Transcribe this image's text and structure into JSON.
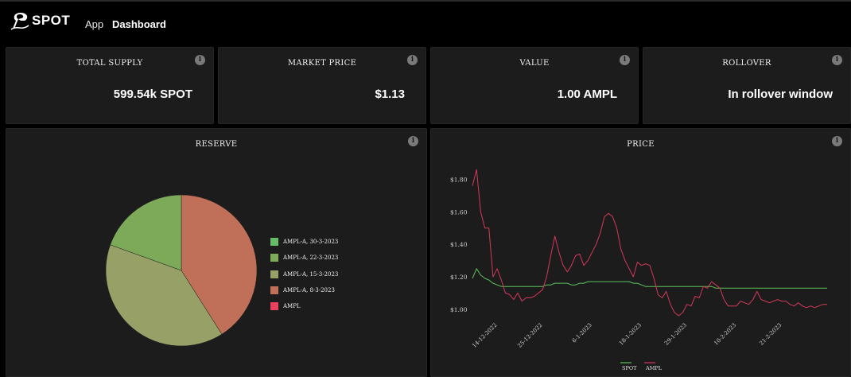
{
  "header": {
    "logo_text": "SPOT",
    "nav": [
      {
        "label": "App"
      },
      {
        "label": "Dashboard"
      }
    ]
  },
  "stats": [
    {
      "title": "TOTAL SUPPLY",
      "value": "599.54k SPOT"
    },
    {
      "title": "MARKET PRICE",
      "value": "$1.13"
    },
    {
      "title": "VALUE",
      "value": "1.00 AMPL"
    },
    {
      "title": "ROLLOVER",
      "value": "In rollover window"
    }
  ],
  "reserve": {
    "title": "RESERVE",
    "legend": [
      {
        "label": "AMPL-A, 30-3-2023",
        "color": "#66bb66"
      },
      {
        "label": "AMPL-A, 22-3-2023",
        "color": "#7daa59"
      },
      {
        "label": "AMPL-A, 15-3-2023",
        "color": "#96a067"
      },
      {
        "label": "AMPL-A, 8-3-2023",
        "color": "#c07059"
      },
      {
        "label": "AMPL",
        "color": "#e9405d"
      }
    ]
  },
  "price": {
    "title": "PRICE",
    "legend": [
      {
        "label": "SPOT",
        "color": "#5cc25c"
      },
      {
        "label": "AMPL",
        "color": "#d3395a"
      }
    ]
  },
  "info_icon_glyph": "i",
  "chart_data": [
    {
      "type": "pie",
      "title": "RESERVE",
      "labels": [
        "AMPL-A, 30-3-2023",
        "AMPL-A, 22-3-2023",
        "AMPL-A, 15-3-2023",
        "AMPL-A, 8-3-2023",
        "AMPL"
      ],
      "values": [
        0.0,
        19.5,
        39.5,
        41.0,
        0.0
      ],
      "colors": [
        "#66bb66",
        "#7daa59",
        "#96a067",
        "#c07059",
        "#e9405d"
      ],
      "legend_position": "right"
    },
    {
      "type": "line",
      "title": "PRICE",
      "x": [
        "2022-12-08",
        "2022-12-09",
        "2022-12-10",
        "2022-12-11",
        "2022-12-12",
        "2022-12-13",
        "2022-12-14",
        "2022-12-15",
        "2022-12-16",
        "2022-12-17",
        "2022-12-18",
        "2022-12-19",
        "2022-12-20",
        "2022-12-21",
        "2022-12-22",
        "2022-12-23",
        "2022-12-24",
        "2022-12-25",
        "2022-12-26",
        "2022-12-27",
        "2022-12-28",
        "2022-12-29",
        "2022-12-30",
        "2022-12-31",
        "2023-01-01",
        "2023-01-02",
        "2023-01-03",
        "2023-01-04",
        "2023-01-05",
        "2023-01-06",
        "2023-01-07",
        "2023-01-08",
        "2023-01-09",
        "2023-01-10",
        "2023-01-11",
        "2023-01-12",
        "2023-01-13",
        "2023-01-14",
        "2023-01-15",
        "2023-01-16",
        "2023-01-17",
        "2023-01-18",
        "2023-01-19",
        "2023-01-20",
        "2023-01-21",
        "2023-01-22",
        "2023-01-23",
        "2023-01-24",
        "2023-01-25",
        "2023-01-26",
        "2023-01-27",
        "2023-01-28",
        "2023-01-29",
        "2023-01-30",
        "2023-01-31",
        "2023-02-01",
        "2023-02-02",
        "2023-02-03",
        "2023-02-04",
        "2023-02-05",
        "2023-02-06",
        "2023-02-07",
        "2023-02-08",
        "2023-02-09",
        "2023-02-10",
        "2023-02-11",
        "2023-02-12",
        "2023-02-13",
        "2023-02-14",
        "2023-02-15",
        "2023-02-16",
        "2023-02-17",
        "2023-02-18",
        "2023-02-19",
        "2023-02-20",
        "2023-02-21",
        "2023-02-22",
        "2023-02-23",
        "2023-02-24",
        "2023-02-25",
        "2023-02-26",
        "2023-02-27",
        "2023-02-28",
        "2023-03-01",
        "2023-03-02",
        "2023-03-03",
        "2023-03-04"
      ],
      "series": [
        {
          "name": "SPOT",
          "values": [
            1.19,
            1.25,
            1.21,
            1.19,
            1.18,
            1.16,
            1.15,
            1.14,
            1.14,
            1.14,
            1.14,
            1.14,
            1.14,
            1.14,
            1.14,
            1.14,
            1.14,
            1.14,
            1.15,
            1.15,
            1.16,
            1.16,
            1.16,
            1.16,
            1.15,
            1.15,
            1.16,
            1.16,
            1.17,
            1.17,
            1.17,
            1.17,
            1.17,
            1.17,
            1.17,
            1.17,
            1.17,
            1.17,
            1.17,
            1.16,
            1.16,
            1.15,
            1.14,
            1.14,
            1.14,
            1.14,
            1.14,
            1.14,
            1.14,
            1.14,
            1.14,
            1.14,
            1.14,
            1.14,
            1.14,
            1.14,
            1.14,
            1.14,
            1.14,
            1.13,
            1.13,
            1.13,
            1.13,
            1.13,
            1.13,
            1.13,
            1.13,
            1.13,
            1.13,
            1.13,
            1.13,
            1.13,
            1.13,
            1.13,
            1.13,
            1.13,
            1.13,
            1.13,
            1.13,
            1.13,
            1.13,
            1.13,
            1.13,
            1.13,
            1.13,
            1.13,
            1.13
          ]
        },
        {
          "name": "AMPL",
          "values": [
            1.76,
            1.86,
            1.6,
            1.5,
            1.5,
            1.2,
            1.25,
            1.18,
            1.1,
            1.09,
            1.06,
            1.1,
            1.05,
            1.07,
            1.07,
            1.08,
            1.1,
            1.12,
            1.2,
            1.33,
            1.45,
            1.35,
            1.27,
            1.23,
            1.27,
            1.33,
            1.34,
            1.27,
            1.3,
            1.35,
            1.4,
            1.47,
            1.57,
            1.59,
            1.57,
            1.5,
            1.37,
            1.3,
            1.25,
            1.2,
            1.29,
            1.27,
            1.28,
            1.27,
            1.19,
            1.09,
            1.07,
            1.11,
            1.03,
            0.98,
            0.96,
            0.98,
            1.03,
            1.02,
            1.08,
            1.07,
            1.14,
            1.13,
            1.17,
            1.15,
            1.13,
            1.06,
            1.02,
            1.02,
            1.02,
            1.05,
            1.04,
            1.03,
            1.06,
            1.11,
            1.06,
            1.05,
            1.04,
            1.05,
            1.06,
            1.05,
            1.05,
            1.03,
            1.02,
            1.04,
            1.02,
            1.01,
            1.02,
            1.01,
            1.02,
            1.03,
            1.03
          ]
        }
      ],
      "x_tick_labels": [
        "14-12-2022",
        "25-12-2022",
        "6-1-2023",
        "18-1-2023",
        "29-1-2023",
        "10-2-2023",
        "21-2-2023"
      ],
      "y_tick_labels": [
        "$1.00",
        "$1.20",
        "$1.40",
        "$1.60",
        "$1.80"
      ],
      "ylim": [
        0.96,
        1.9
      ],
      "grid": false,
      "legend_position": "bottom"
    }
  ]
}
